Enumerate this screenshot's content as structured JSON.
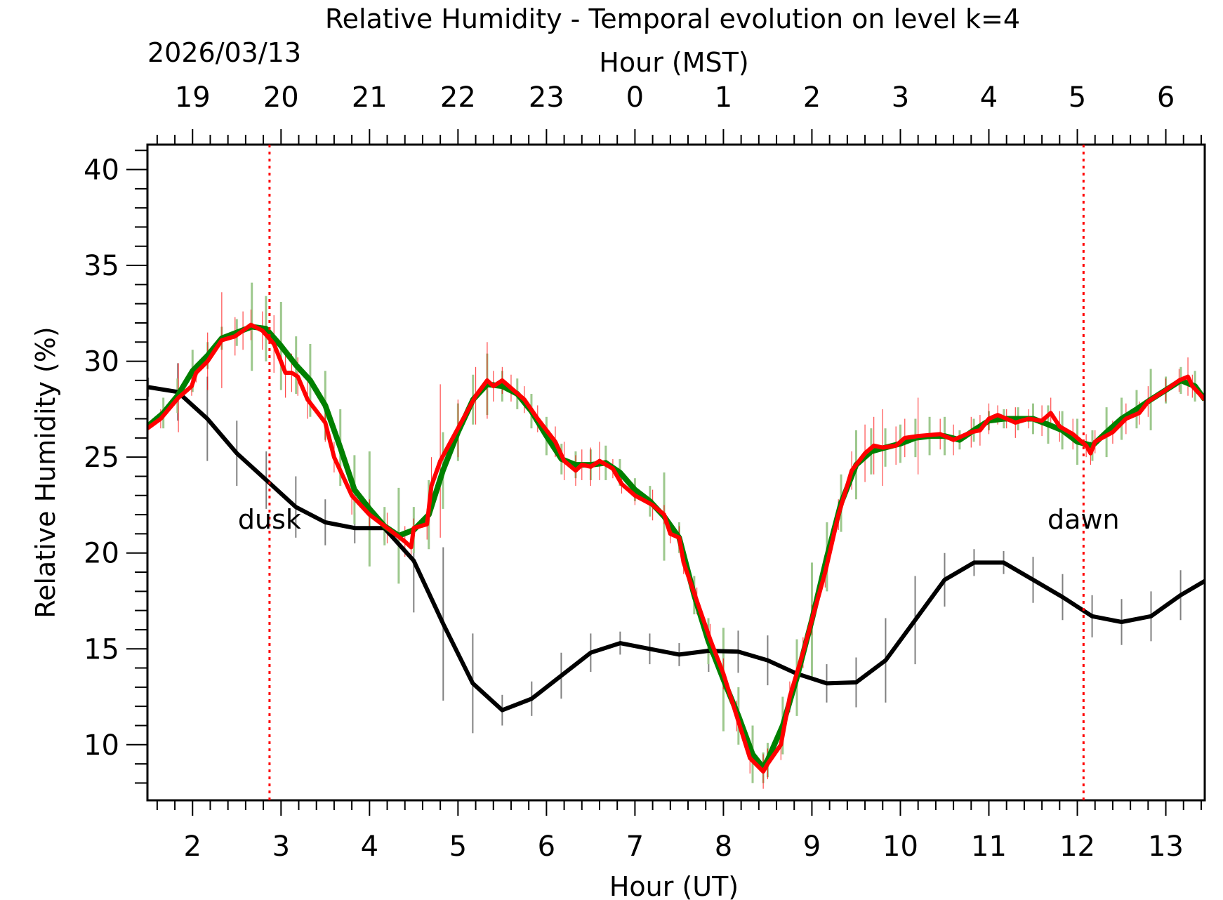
{
  "chart_data": {
    "type": "line",
    "title": "Relative Humidity - Temporal evolution on level k=4",
    "xlabel": "Hour (UT)",
    "x2label": "Hour (MST)",
    "date_label": "2026/03/13",
    "ylabel": "Relative Humidity (%)",
    "xlim": [
      1.49,
      13.44
    ],
    "ylim": [
      7.1,
      41.3
    ],
    "xticks": [
      2,
      3,
      4,
      5,
      6,
      7,
      8,
      9,
      10,
      11,
      12,
      13
    ],
    "xtick_labels": [
      "2",
      "3",
      "4",
      "5",
      "6",
      "7",
      "8",
      "9",
      "10",
      "11",
      "12",
      "13"
    ],
    "x2tick_labels": [
      "19",
      "20",
      "21",
      "22",
      "23",
      "0",
      "1",
      "2",
      "3",
      "4",
      "5",
      "6"
    ],
    "yticks": [
      10,
      15,
      20,
      25,
      30,
      35,
      40
    ],
    "ytick_labels": [
      "10",
      "15",
      "20",
      "25",
      "30",
      "35",
      "40"
    ],
    "grid": false,
    "annotations": [
      {
        "text": "dusk",
        "x": 2.87,
        "color": "#ff0000"
      },
      {
        "text": "dawn",
        "x": 12.07,
        "color": "#ff0000"
      }
    ],
    "colors": {
      "black": "#000000",
      "green": "#008000",
      "green_err": "#9dc88d",
      "red": "#ff0000",
      "black_err": "#808080"
    },
    "series": [
      {
        "name": "black",
        "x": [
          1.5,
          1.833,
          2.167,
          2.5,
          2.833,
          3.167,
          3.5,
          3.833,
          4.167,
          4.5,
          4.833,
          5.167,
          5.5,
          5.833,
          6.167,
          6.5,
          6.833,
          7.167,
          7.5,
          7.833,
          8.167,
          8.5,
          8.833,
          9.167,
          9.5,
          9.833,
          10.167,
          10.5,
          10.833,
          11.167,
          11.5,
          11.833,
          12.167,
          12.5,
          12.833,
          13.167,
          13.5
        ],
        "y": [
          28.65,
          28.4,
          27.0,
          25.2,
          23.8,
          22.4,
          21.6,
          21.3,
          21.3,
          19.6,
          16.3,
          13.2,
          11.8,
          12.4,
          13.6,
          14.8,
          15.3,
          15.0,
          14.7,
          14.9,
          14.85,
          14.4,
          13.7,
          13.2,
          13.25,
          14.4,
          16.5,
          18.6,
          19.5,
          19.5,
          18.6,
          17.7,
          16.7,
          16.4,
          16.7,
          17.8,
          18.7
        ],
        "err": [
          0.5,
          1.5,
          2.2,
          1.7,
          1.5,
          1.6,
          1.2,
          0.8,
          0.7,
          2.7,
          4.0,
          2.6,
          0.8,
          0.9,
          1.2,
          1.0,
          0.6,
          0.8,
          0.6,
          1.1,
          1.1,
          1.3,
          1.2,
          1.0,
          1.3,
          2.2,
          2.3,
          1.4,
          0.7,
          0.6,
          1.2,
          1.2,
          1.1,
          1.2,
          1.3,
          1.3,
          1.0
        ]
      },
      {
        "name": "green",
        "x": [
          1.49,
          1.67,
          1.83,
          2.0,
          2.17,
          2.33,
          2.5,
          2.67,
          2.83,
          3.0,
          3.17,
          3.33,
          3.5,
          3.67,
          3.83,
          4.0,
          4.17,
          4.33,
          4.5,
          4.67,
          4.83,
          5.0,
          5.17,
          5.33,
          5.5,
          5.67,
          5.83,
          6.0,
          6.17,
          6.33,
          6.5,
          6.67,
          6.83,
          7.0,
          7.17,
          7.33,
          7.5,
          7.67,
          7.83,
          8.0,
          8.17,
          8.33,
          8.45,
          8.5,
          8.67,
          8.83,
          9.0,
          9.17,
          9.33,
          9.5,
          9.67,
          9.83,
          10.0,
          10.17,
          10.33,
          10.5,
          10.67,
          10.83,
          11.0,
          11.17,
          11.33,
          11.5,
          11.67,
          11.83,
          12.0,
          12.17,
          12.33,
          12.5,
          12.67,
          12.83,
          13.0,
          13.17,
          13.33,
          13.44
        ],
        "y": [
          26.6,
          27.3,
          28.2,
          29.5,
          30.3,
          31.2,
          31.5,
          31.8,
          31.7,
          30.8,
          29.8,
          29.0,
          27.7,
          25.5,
          23.3,
          22.3,
          21.4,
          20.9,
          21.2,
          22.0,
          24.3,
          26.3,
          28.0,
          28.8,
          28.7,
          28.3,
          27.4,
          26.1,
          24.9,
          24.6,
          24.6,
          24.7,
          24.2,
          23.3,
          22.7,
          21.9,
          20.8,
          17.8,
          15.4,
          13.4,
          11.5,
          9.5,
          8.8,
          9.2,
          11.0,
          13.5,
          16.5,
          19.8,
          22.6,
          24.6,
          25.3,
          25.5,
          25.7,
          26.0,
          26.1,
          26.1,
          25.9,
          26.4,
          26.9,
          27.0,
          27.0,
          27.0,
          26.7,
          26.4,
          25.8,
          25.6,
          26.3,
          27.0,
          27.5,
          28.0,
          28.5,
          29.0,
          28.7,
          28.0
        ],
        "err": [
          0.5,
          0.8,
          0.9,
          1.1,
          0.7,
          0.6,
          0.7,
          2.3,
          1.7,
          2.3,
          1.5,
          1.9,
          1.8,
          2.0,
          1.8,
          3.0,
          1.0,
          2.5,
          1.2,
          1.8,
          2.0,
          1.5,
          1.3,
          1.6,
          0.8,
          0.8,
          0.9,
          1.0,
          0.8,
          0.7,
          0.8,
          0.9,
          0.7,
          0.6,
          0.8,
          2.3,
          0.8,
          1.0,
          1.2,
          2.7,
          1.5,
          1.5,
          0.8,
          0.9,
          1.5,
          2.0,
          3.0,
          1.8,
          1.5,
          1.8,
          1.2,
          1.0,
          1.0,
          1.0,
          1.0,
          1.0,
          0.5,
          0.6,
          0.5,
          0.5,
          0.6,
          0.8,
          1.0,
          1.0,
          1.2,
          0.8,
          1.3,
          1.1,
          1.0,
          1.6,
          0.7,
          0.7,
          0.8,
          0.8
        ]
      },
      {
        "name": "red",
        "x": [
          1.49,
          1.64,
          1.84,
          1.99,
          2.04,
          2.17,
          2.33,
          2.48,
          2.57,
          2.66,
          2.79,
          2.92,
          3.05,
          3.12,
          3.19,
          3.3,
          3.5,
          3.6,
          3.8,
          4.0,
          4.2,
          4.4,
          4.47,
          4.5,
          4.65,
          4.7,
          4.8,
          5.0,
          5.2,
          5.33,
          5.4,
          5.5,
          5.6,
          5.75,
          5.9,
          6.1,
          6.2,
          6.33,
          6.4,
          6.5,
          6.6,
          6.75,
          6.85,
          7.0,
          7.2,
          7.33,
          7.4,
          7.5,
          7.55,
          7.7,
          7.85,
          8.0,
          8.15,
          8.3,
          8.45,
          8.5,
          8.65,
          8.75,
          8.9,
          9.0,
          9.15,
          9.3,
          9.45,
          9.6,
          9.7,
          9.8,
          9.95,
          10.05,
          10.2,
          10.45,
          10.6,
          10.8,
          10.9,
          11.0,
          11.1,
          11.2,
          11.3,
          11.45,
          11.6,
          11.7,
          11.8,
          11.95,
          12.1,
          12.15,
          12.2,
          12.4,
          12.55,
          12.7,
          12.8,
          13.0,
          13.15,
          13.25,
          13.3,
          13.44
        ],
        "y": [
          26.5,
          27.0,
          28.1,
          28.7,
          29.4,
          30.0,
          31.1,
          31.3,
          31.6,
          31.9,
          31.6,
          30.9,
          29.4,
          29.4,
          29.2,
          28.0,
          26.8,
          25.0,
          23.0,
          22.0,
          21.3,
          20.6,
          20.3,
          21.3,
          21.5,
          23.5,
          24.8,
          26.5,
          28.2,
          29.0,
          28.7,
          29.0,
          28.6,
          28.0,
          27.0,
          25.8,
          24.8,
          24.3,
          24.6,
          24.5,
          24.8,
          24.4,
          23.6,
          23.0,
          22.5,
          22.0,
          21.0,
          20.8,
          19.5,
          17.5,
          15.5,
          13.7,
          11.5,
          9.3,
          8.6,
          9.0,
          10.0,
          12.5,
          14.8,
          16.5,
          19.0,
          22.0,
          24.3,
          25.2,
          25.6,
          25.5,
          25.6,
          26.0,
          26.1,
          26.2,
          25.9,
          26.3,
          26.4,
          27.0,
          27.2,
          27.0,
          26.8,
          27.0,
          26.9,
          27.3,
          26.6,
          26.2,
          25.6,
          25.2,
          25.8,
          26.3,
          27.0,
          27.3,
          27.9,
          28.5,
          29.0,
          29.2,
          28.7,
          28.0
        ],
        "err": [
          0.3,
          0.5,
          1.8,
          0.5,
          0.5,
          1.5,
          2.5,
          1.0,
          1.0,
          0.8,
          1.0,
          1.5,
          1.3,
          1.0,
          1.0,
          1.0,
          1.0,
          0.8,
          1.0,
          0.8,
          0.8,
          0.8,
          0.5,
          0.5,
          0.8,
          1.5,
          4.0,
          1.5,
          1.5,
          2.0,
          0.8,
          0.7,
          0.7,
          0.7,
          0.7,
          0.8,
          1.0,
          0.8,
          0.8,
          1.0,
          1.0,
          0.5,
          0.5,
          0.5,
          0.8,
          0.5,
          0.5,
          0.6,
          0.6,
          0.7,
          0.8,
          0.8,
          0.8,
          0.8,
          0.9,
          0.8,
          0.8,
          0.8,
          0.8,
          0.8,
          0.8,
          0.8,
          1.0,
          1.5,
          1.5,
          2.0,
          1.0,
          1.0,
          2.0,
          0.8,
          0.8,
          0.8,
          0.8,
          0.8,
          0.5,
          0.5,
          0.8,
          0.5,
          0.8,
          0.8,
          0.8,
          0.8,
          0.6,
          0.6,
          0.6,
          0.6,
          0.8,
          0.6,
          0.8,
          0.6,
          0.6,
          1.0,
          0.6,
          0.5
        ]
      }
    ]
  }
}
